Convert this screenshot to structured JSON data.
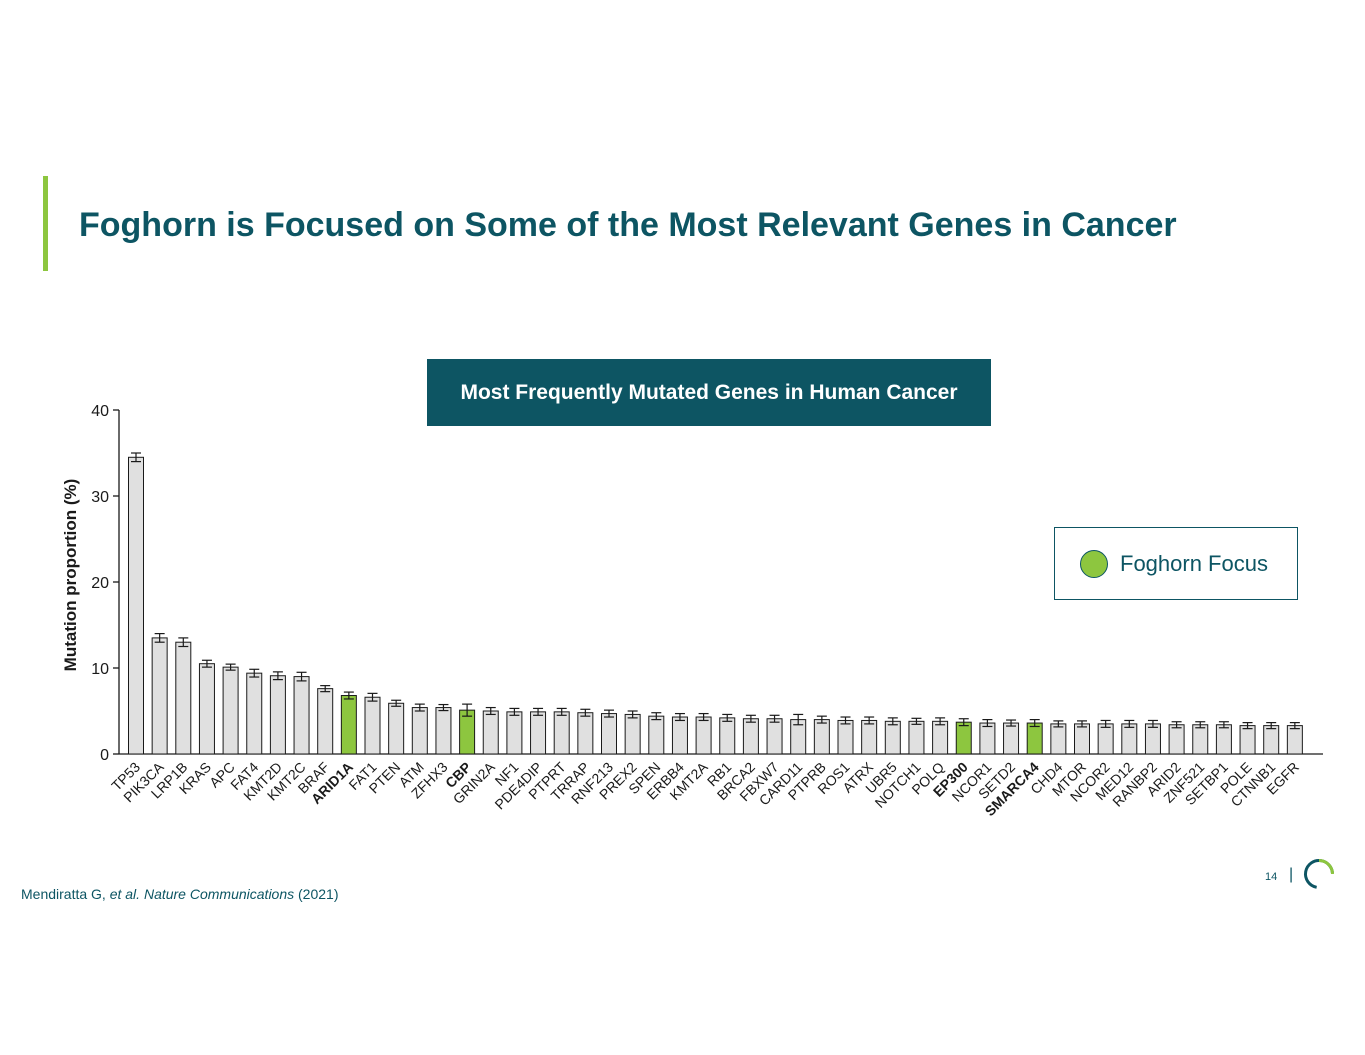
{
  "slide": {
    "title": "Foghorn is Focused on Some of the Most Relevant Genes in Cancer",
    "chart_banner": "Most Frequently Mutated Genes in Human Cancer",
    "legend_label": "Foghorn Focus",
    "citation_author": "Mendiratta G, ",
    "citation_etal": "et al.",
    "citation_journal": " Nature Communications",
    "citation_year": " (2021)",
    "page_number": "14",
    "page_separator": "|"
  },
  "colors": {
    "brand_teal": "#0d5563",
    "accent_green": "#8dc63f",
    "bar_gray": "#e0e0e0",
    "bar_outline": "#1a1a1a"
  },
  "chart_data": {
    "type": "bar",
    "title": "Most Frequently Mutated Genes in Human Cancer",
    "xlabel": "",
    "ylabel": "Mutation proportion (%)",
    "ylim": [
      0,
      40
    ],
    "yticks": [
      0,
      10,
      20,
      30,
      40
    ],
    "legend": "right",
    "categories": [
      "TP53",
      "PIK3CA",
      "LRP1B",
      "KRAS",
      "APC",
      "FAT4",
      "KMT2D",
      "KMT2C",
      "BRAF",
      "ARID1A",
      "FAT1",
      "PTEN",
      "ATM",
      "ZFHX3",
      "CBP",
      "GRIN2A",
      "NF1",
      "PDE4DIP",
      "PTPRT",
      "TRRAP",
      "RNF213",
      "PREX2",
      "SPEN",
      "ERBB4",
      "KMT2A",
      "RB1",
      "BRCA2",
      "FBXW7",
      "CARD11",
      "PTPRB",
      "ROS1",
      "ATRX",
      "UBR5",
      "NOTCH1",
      "POLQ",
      "EP300",
      "NCOR1",
      "SETD2",
      "SMARCA4",
      "CHD4",
      "MTOR",
      "NCOR2",
      "MED12",
      "RANBP2",
      "ARID2",
      "ZNF521",
      "SETBP1",
      "POLE",
      "CTNNB1",
      "EGFR"
    ],
    "values": [
      34.5,
      13.5,
      13.0,
      10.5,
      10.1,
      9.4,
      9.1,
      9.0,
      7.6,
      6.8,
      6.6,
      5.9,
      5.4,
      5.4,
      5.1,
      5.0,
      4.9,
      4.9,
      4.9,
      4.8,
      4.7,
      4.6,
      4.4,
      4.3,
      4.3,
      4.2,
      4.1,
      4.1,
      4.0,
      4.0,
      3.9,
      3.9,
      3.8,
      3.8,
      3.8,
      3.7,
      3.6,
      3.6,
      3.6,
      3.5,
      3.5,
      3.5,
      3.5,
      3.5,
      3.4,
      3.4,
      3.4,
      3.3,
      3.3,
      3.3
    ],
    "errors": [
      0.5,
      0.5,
      0.5,
      0.4,
      0.35,
      0.45,
      0.45,
      0.5,
      0.35,
      0.4,
      0.45,
      0.35,
      0.4,
      0.35,
      0.7,
      0.4,
      0.4,
      0.4,
      0.4,
      0.4,
      0.4,
      0.4,
      0.4,
      0.4,
      0.4,
      0.4,
      0.4,
      0.4,
      0.6,
      0.4,
      0.4,
      0.4,
      0.4,
      0.35,
      0.4,
      0.4,
      0.4,
      0.35,
      0.4,
      0.35,
      0.35,
      0.4,
      0.4,
      0.4,
      0.35,
      0.35,
      0.35,
      0.35,
      0.35,
      0.35
    ],
    "highlighted": [
      "ARID1A",
      "CBP",
      "EP300",
      "SMARCA4"
    ]
  }
}
